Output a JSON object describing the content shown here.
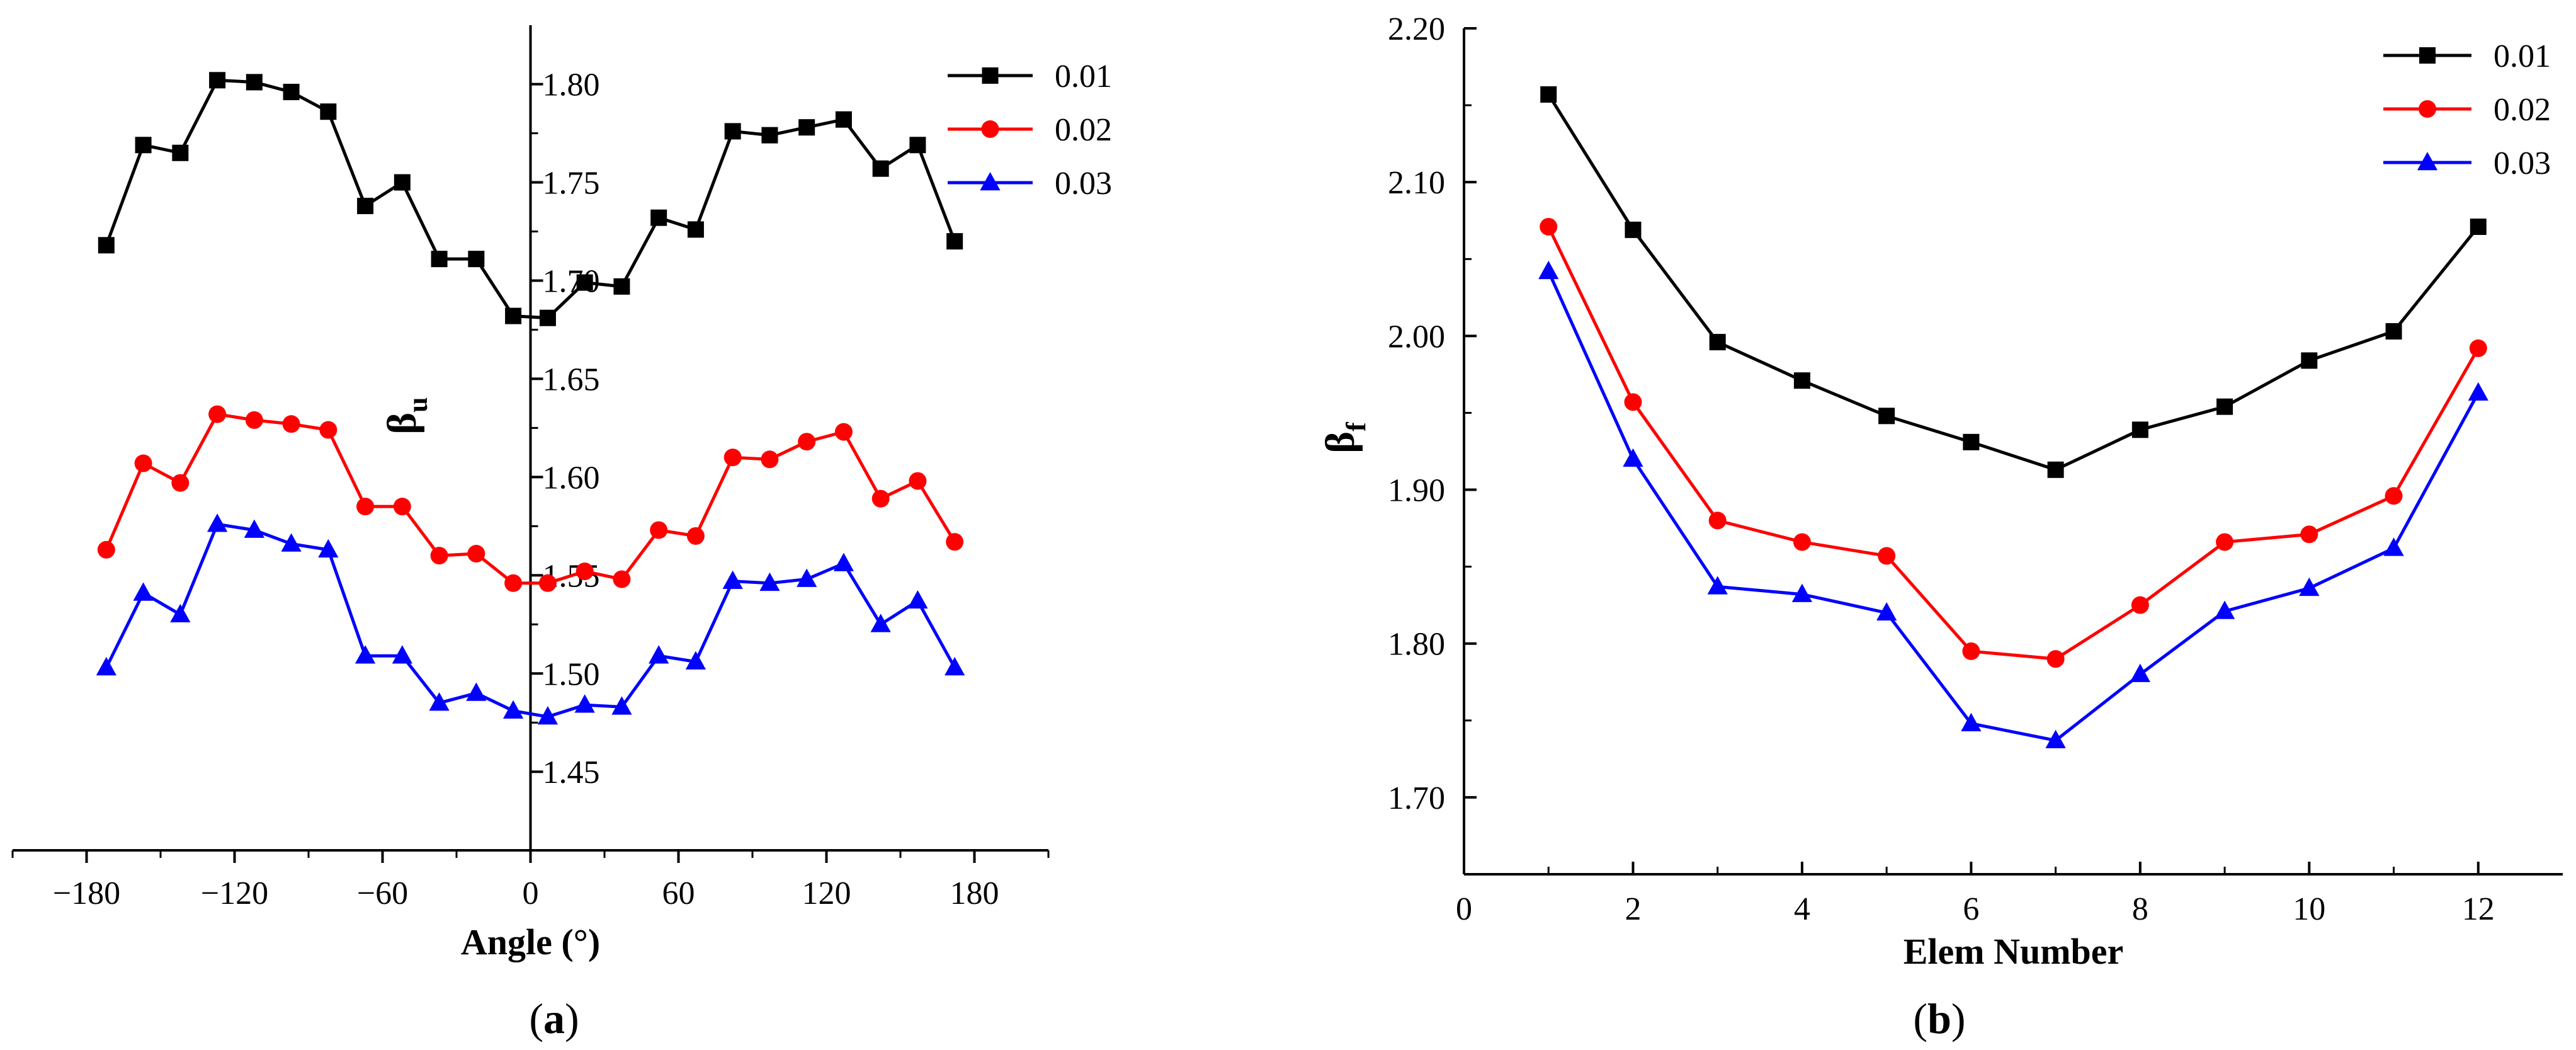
{
  "chart_data": [
    {
      "type": "line",
      "panel": "a",
      "caption_letter": "a",
      "title": "",
      "xlabel": "Angle (°)",
      "ylabel_base": "β",
      "ylabel_sub": "u",
      "xlim": [
        -210,
        210
      ],
      "ylim": [
        1.41,
        1.83
      ],
      "xticks": [
        -180,
        -120,
        -60,
        0,
        60,
        120,
        180
      ],
      "xtick_labels": [
        "−180",
        "−120",
        "−60",
        "0",
        "60",
        "120",
        "180"
      ],
      "yticks": [
        1.45,
        1.5,
        1.55,
        1.6,
        1.65,
        1.7,
        1.75,
        1.8
      ],
      "ytick_labels": [
        "1.45",
        "1.50",
        "1.55",
        "1.60",
        "1.65",
        "1.70",
        "1.75",
        "1.80"
      ],
      "yaxis_at_x": 0,
      "legend_position": "top-right",
      "x": [
        -172,
        -157,
        -142,
        -127,
        -112,
        -97,
        -82,
        -67,
        -52,
        -37,
        -22,
        -7,
        7,
        22,
        37,
        52,
        67,
        82,
        97,
        112,
        127,
        142,
        157,
        172
      ],
      "series": [
        {
          "name": "0.01",
          "color": "#000000",
          "marker": "square",
          "values": [
            1.718,
            1.769,
            1.765,
            1.802,
            1.801,
            1.796,
            1.786,
            1.738,
            1.75,
            1.711,
            1.711,
            1.682,
            1.681,
            1.699,
            1.697,
            1.732,
            1.726,
            1.776,
            1.774,
            1.778,
            1.782,
            1.757,
            1.769,
            1.72
          ]
        },
        {
          "name": "0.02",
          "color": "#ff0000",
          "marker": "circle",
          "values": [
            1.563,
            1.607,
            1.597,
            1.632,
            1.629,
            1.627,
            1.624,
            1.585,
            1.585,
            1.56,
            1.561,
            1.546,
            1.546,
            1.552,
            1.548,
            1.573,
            1.57,
            1.61,
            1.609,
            1.618,
            1.623,
            1.589,
            1.598,
            1.567
          ]
        },
        {
          "name": "0.03",
          "color": "#0000ff",
          "marker": "triangle",
          "values": [
            1.503,
            1.541,
            1.53,
            1.576,
            1.573,
            1.566,
            1.563,
            1.509,
            1.509,
            1.485,
            1.49,
            1.481,
            1.478,
            1.484,
            1.483,
            1.509,
            1.506,
            1.547,
            1.546,
            1.548,
            1.556,
            1.525,
            1.537,
            1.503
          ]
        }
      ]
    },
    {
      "type": "line",
      "panel": "b",
      "caption_letter": "b",
      "title": "",
      "xlabel": "Elem Number",
      "ylabel_base": "β",
      "ylabel_sub": "f",
      "xlim": [
        0,
        13
      ],
      "ylim": [
        1.65,
        2.2
      ],
      "xticks": [
        0,
        2,
        4,
        6,
        8,
        10,
        12
      ],
      "xtick_labels": [
        "0",
        "2",
        "4",
        "6",
        "8",
        "10",
        "12"
      ],
      "yticks": [
        1.7,
        1.8,
        1.9,
        2.0,
        2.1,
        2.2
      ],
      "ytick_labels": [
        "1.70",
        "1.80",
        "1.90",
        "2.00",
        "2.10",
        "2.20"
      ],
      "legend_position": "top-right",
      "x": [
        1,
        2,
        3,
        4,
        5,
        6,
        7,
        8,
        9,
        10,
        11,
        12
      ],
      "series": [
        {
          "name": "0.01",
          "color": "#000000",
          "marker": "square",
          "values": [
            2.157,
            2.069,
            1.996,
            1.971,
            1.948,
            1.931,
            1.913,
            1.939,
            1.954,
            1.984,
            2.003,
            2.071
          ]
        },
        {
          "name": "0.02",
          "color": "#ff0000",
          "marker": "circle",
          "values": [
            2.071,
            1.957,
            1.88,
            1.866,
            1.857,
            1.795,
            1.79,
            1.825,
            1.866,
            1.871,
            1.896,
            1.992
          ]
        },
        {
          "name": "0.03",
          "color": "#0000ff",
          "marker": "triangle",
          "values": [
            2.042,
            1.92,
            1.837,
            1.832,
            1.82,
            1.748,
            1.737,
            1.78,
            1.821,
            1.836,
            1.862,
            1.963
          ]
        }
      ]
    }
  ]
}
